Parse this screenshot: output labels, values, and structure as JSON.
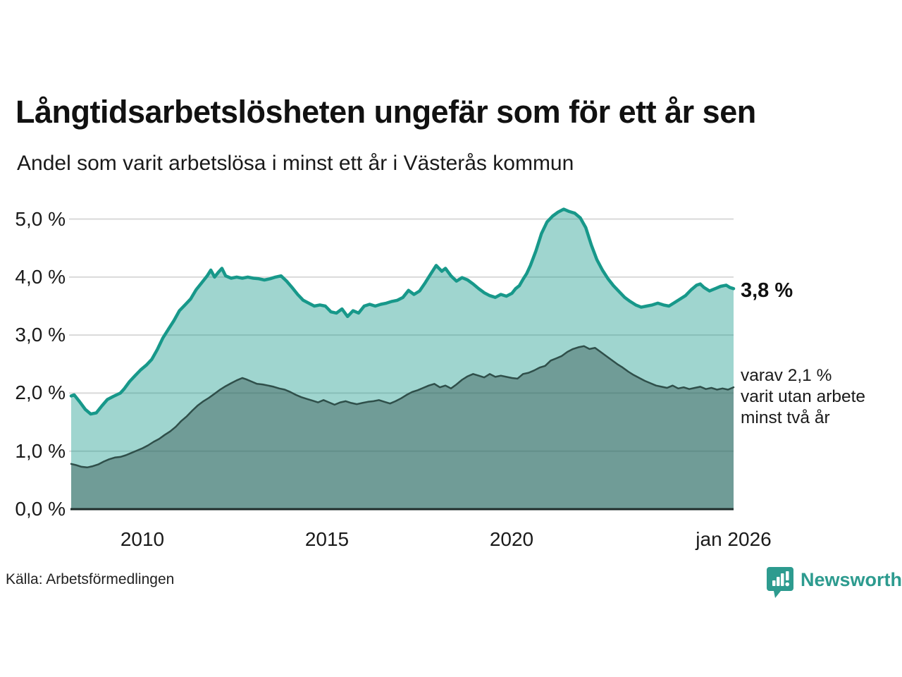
{
  "header": {
    "title": "Långtidsarbetslösheten ungefär som för ett år sen",
    "subtitle": "Andel som varit arbetslösa i minst ett år i Västerås kommun"
  },
  "annotations": {
    "latest_value": "3,8 %",
    "secondary_line1": "varav 2,1 %",
    "secondary_line2": "varit utan arbete",
    "secondary_line3": "minst två år"
  },
  "footer": {
    "source": "Källa: Arbetsförmedlingen",
    "brand": "Newsworthy"
  },
  "colors": {
    "accent_teal": "#17988a",
    "dark_line": "#2f4f4a",
    "light_fill": "rgba(23,152,138,0.41)",
    "dark_fill": "rgba(47,79,74,0.42)",
    "gridline": "#d9d9d9",
    "baseline": "#1f2d2b",
    "brand_teal": "#2d9b8f",
    "text": "#1a1a1a"
  },
  "chart_data": {
    "type": "area",
    "title": "Långtidsarbetslösheten ungefär som för ett år sen",
    "subtitle": "Andel som varit arbetslösa i minst ett år i Västerås kommun",
    "xlabel": "",
    "ylabel": "",
    "grid": true,
    "legend_position": "right-annotations",
    "x_axis": {
      "range": [
        2008.05,
        2026.0
      ],
      "ticks": [
        {
          "x": 2010,
          "label": "2010"
        },
        {
          "x": 2015,
          "label": "2015"
        },
        {
          "x": 2020,
          "label": "2020"
        },
        {
          "x": 2026,
          "label": "jan 2026"
        }
      ]
    },
    "y_axis": {
      "range": [
        0,
        5.25
      ],
      "unit": "%",
      "gridlines": [
        1,
        2,
        3,
        4,
        5
      ],
      "ticks": [
        {
          "v": 0,
          "label": "0,0 %"
        },
        {
          "v": 1,
          "label": "1,0 %"
        },
        {
          "v": 2,
          "label": "2,0 %"
        },
        {
          "v": 3,
          "label": "3,0 %"
        },
        {
          "v": 4,
          "label": "4,0 %"
        },
        {
          "v": 5,
          "label": "5,0 %"
        }
      ]
    },
    "series": [
      {
        "name": "Arbetslösa minst ett år",
        "end_label": "3,8 %",
        "end_value": 3.8,
        "color": "#17988a",
        "fill": "rgba(23,152,138,0.41)",
        "stroke_width": 4.5,
        "points": [
          [
            2008.07,
            1.95
          ],
          [
            2008.15,
            1.97
          ],
          [
            2008.3,
            1.85
          ],
          [
            2008.45,
            1.72
          ],
          [
            2008.6,
            1.64
          ],
          [
            2008.75,
            1.66
          ],
          [
            2008.9,
            1.78
          ],
          [
            2009.05,
            1.89
          ],
          [
            2009.2,
            1.94
          ],
          [
            2009.4,
            2.0
          ],
          [
            2009.5,
            2.07
          ],
          [
            2009.65,
            2.2
          ],
          [
            2009.8,
            2.3
          ],
          [
            2009.95,
            2.4
          ],
          [
            2010.1,
            2.48
          ],
          [
            2010.25,
            2.58
          ],
          [
            2010.4,
            2.75
          ],
          [
            2010.55,
            2.95
          ],
          [
            2010.7,
            3.1
          ],
          [
            2010.85,
            3.25
          ],
          [
            2011.0,
            3.42
          ],
          [
            2011.15,
            3.52
          ],
          [
            2011.3,
            3.62
          ],
          [
            2011.45,
            3.78
          ],
          [
            2011.6,
            3.9
          ],
          [
            2011.75,
            4.02
          ],
          [
            2011.85,
            4.12
          ],
          [
            2011.95,
            4.0
          ],
          [
            2012.05,
            4.08
          ],
          [
            2012.15,
            4.15
          ],
          [
            2012.25,
            4.02
          ],
          [
            2012.4,
            3.98
          ],
          [
            2012.55,
            4.0
          ],
          [
            2012.7,
            3.98
          ],
          [
            2012.85,
            4.0
          ],
          [
            2013.0,
            3.98
          ],
          [
            2013.15,
            3.97
          ],
          [
            2013.3,
            3.95
          ],
          [
            2013.45,
            3.97
          ],
          [
            2013.6,
            4.0
          ],
          [
            2013.75,
            4.02
          ],
          [
            2013.9,
            3.93
          ],
          [
            2014.05,
            3.82
          ],
          [
            2014.2,
            3.7
          ],
          [
            2014.35,
            3.6
          ],
          [
            2014.5,
            3.55
          ],
          [
            2014.65,
            3.5
          ],
          [
            2014.8,
            3.52
          ],
          [
            2014.95,
            3.5
          ],
          [
            2015.1,
            3.4
          ],
          [
            2015.25,
            3.38
          ],
          [
            2015.4,
            3.45
          ],
          [
            2015.55,
            3.32
          ],
          [
            2015.7,
            3.42
          ],
          [
            2015.85,
            3.38
          ],
          [
            2016.0,
            3.5
          ],
          [
            2016.15,
            3.53
          ],
          [
            2016.3,
            3.5
          ],
          [
            2016.45,
            3.53
          ],
          [
            2016.6,
            3.55
          ],
          [
            2016.75,
            3.58
          ],
          [
            2016.9,
            3.6
          ],
          [
            2017.05,
            3.65
          ],
          [
            2017.2,
            3.77
          ],
          [
            2017.35,
            3.7
          ],
          [
            2017.5,
            3.76
          ],
          [
            2017.65,
            3.9
          ],
          [
            2017.8,
            4.05
          ],
          [
            2017.95,
            4.2
          ],
          [
            2018.1,
            4.1
          ],
          [
            2018.2,
            4.15
          ],
          [
            2018.35,
            4.02
          ],
          [
            2018.5,
            3.93
          ],
          [
            2018.65,
            3.99
          ],
          [
            2018.8,
            3.95
          ],
          [
            2018.95,
            3.88
          ],
          [
            2019.1,
            3.8
          ],
          [
            2019.25,
            3.73
          ],
          [
            2019.4,
            3.68
          ],
          [
            2019.55,
            3.65
          ],
          [
            2019.7,
            3.7
          ],
          [
            2019.85,
            3.67
          ],
          [
            2020.0,
            3.72
          ],
          [
            2020.1,
            3.8
          ],
          [
            2020.2,
            3.85
          ],
          [
            2020.3,
            3.96
          ],
          [
            2020.4,
            4.06
          ],
          [
            2020.5,
            4.2
          ],
          [
            2020.65,
            4.45
          ],
          [
            2020.8,
            4.75
          ],
          [
            2020.95,
            4.95
          ],
          [
            2021.1,
            5.05
          ],
          [
            2021.25,
            5.12
          ],
          [
            2021.4,
            5.17
          ],
          [
            2021.55,
            5.13
          ],
          [
            2021.7,
            5.1
          ],
          [
            2021.85,
            5.02
          ],
          [
            2022.0,
            4.85
          ],
          [
            2022.15,
            4.55
          ],
          [
            2022.3,
            4.3
          ],
          [
            2022.45,
            4.12
          ],
          [
            2022.6,
            3.97
          ],
          [
            2022.75,
            3.85
          ],
          [
            2022.9,
            3.75
          ],
          [
            2023.05,
            3.65
          ],
          [
            2023.2,
            3.58
          ],
          [
            2023.35,
            3.52
          ],
          [
            2023.5,
            3.48
          ],
          [
            2023.65,
            3.5
          ],
          [
            2023.8,
            3.52
          ],
          [
            2023.95,
            3.55
          ],
          [
            2024.1,
            3.52
          ],
          [
            2024.25,
            3.5
          ],
          [
            2024.4,
            3.56
          ],
          [
            2024.55,
            3.62
          ],
          [
            2024.7,
            3.68
          ],
          [
            2024.85,
            3.78
          ],
          [
            2025.0,
            3.86
          ],
          [
            2025.1,
            3.88
          ],
          [
            2025.2,
            3.82
          ],
          [
            2025.35,
            3.76
          ],
          [
            2025.5,
            3.8
          ],
          [
            2025.65,
            3.84
          ],
          [
            2025.8,
            3.86
          ],
          [
            2025.9,
            3.82
          ],
          [
            2026.0,
            3.8
          ]
        ]
      },
      {
        "name": "Arbetslösa minst två år",
        "end_label": "varav 2,1 % varit utan arbete minst två år",
        "end_value": 2.1,
        "color": "#2f4f4a",
        "fill": "rgba(47,79,74,0.42)",
        "stroke_width": 2.5,
        "points": [
          [
            2008.07,
            0.78
          ],
          [
            2008.2,
            0.76
          ],
          [
            2008.35,
            0.73
          ],
          [
            2008.5,
            0.72
          ],
          [
            2008.65,
            0.74
          ],
          [
            2008.8,
            0.77
          ],
          [
            2008.95,
            0.82
          ],
          [
            2009.1,
            0.86
          ],
          [
            2009.25,
            0.89
          ],
          [
            2009.4,
            0.9
          ],
          [
            2009.55,
            0.93
          ],
          [
            2009.7,
            0.97
          ],
          [
            2009.85,
            1.01
          ],
          [
            2010.0,
            1.05
          ],
          [
            2010.15,
            1.1
          ],
          [
            2010.3,
            1.16
          ],
          [
            2010.45,
            1.21
          ],
          [
            2010.6,
            1.28
          ],
          [
            2010.75,
            1.34
          ],
          [
            2010.9,
            1.42
          ],
          [
            2011.05,
            1.52
          ],
          [
            2011.2,
            1.6
          ],
          [
            2011.35,
            1.7
          ],
          [
            2011.5,
            1.79
          ],
          [
            2011.65,
            1.86
          ],
          [
            2011.8,
            1.92
          ],
          [
            2011.95,
            1.99
          ],
          [
            2012.1,
            2.06
          ],
          [
            2012.25,
            2.12
          ],
          [
            2012.4,
            2.17
          ],
          [
            2012.55,
            2.22
          ],
          [
            2012.7,
            2.26
          ],
          [
            2012.8,
            2.24
          ],
          [
            2012.95,
            2.2
          ],
          [
            2013.1,
            2.16
          ],
          [
            2013.25,
            2.15
          ],
          [
            2013.4,
            2.13
          ],
          [
            2013.55,
            2.11
          ],
          [
            2013.7,
            2.08
          ],
          [
            2013.85,
            2.06
          ],
          [
            2014.0,
            2.02
          ],
          [
            2014.15,
            1.97
          ],
          [
            2014.3,
            1.93
          ],
          [
            2014.45,
            1.9
          ],
          [
            2014.6,
            1.87
          ],
          [
            2014.75,
            1.84
          ],
          [
            2014.9,
            1.88
          ],
          [
            2015.05,
            1.84
          ],
          [
            2015.2,
            1.8
          ],
          [
            2015.35,
            1.84
          ],
          [
            2015.5,
            1.86
          ],
          [
            2015.65,
            1.83
          ],
          [
            2015.8,
            1.81
          ],
          [
            2015.95,
            1.83
          ],
          [
            2016.1,
            1.85
          ],
          [
            2016.25,
            1.86
          ],
          [
            2016.4,
            1.88
          ],
          [
            2016.55,
            1.85
          ],
          [
            2016.7,
            1.82
          ],
          [
            2016.85,
            1.86
          ],
          [
            2017.0,
            1.91
          ],
          [
            2017.15,
            1.97
          ],
          [
            2017.3,
            2.02
          ],
          [
            2017.45,
            2.05
          ],
          [
            2017.6,
            2.09
          ],
          [
            2017.75,
            2.13
          ],
          [
            2017.9,
            2.16
          ],
          [
            2018.05,
            2.1
          ],
          [
            2018.2,
            2.13
          ],
          [
            2018.35,
            2.08
          ],
          [
            2018.5,
            2.15
          ],
          [
            2018.65,
            2.23
          ],
          [
            2018.8,
            2.29
          ],
          [
            2018.95,
            2.33
          ],
          [
            2019.1,
            2.3
          ],
          [
            2019.25,
            2.27
          ],
          [
            2019.4,
            2.33
          ],
          [
            2019.55,
            2.28
          ],
          [
            2019.7,
            2.3
          ],
          [
            2019.85,
            2.28
          ],
          [
            2020.0,
            2.26
          ],
          [
            2020.15,
            2.25
          ],
          [
            2020.3,
            2.33
          ],
          [
            2020.45,
            2.35
          ],
          [
            2020.6,
            2.39
          ],
          [
            2020.75,
            2.44
          ],
          [
            2020.9,
            2.47
          ],
          [
            2021.05,
            2.56
          ],
          [
            2021.2,
            2.6
          ],
          [
            2021.35,
            2.64
          ],
          [
            2021.5,
            2.71
          ],
          [
            2021.65,
            2.76
          ],
          [
            2021.8,
            2.79
          ],
          [
            2021.95,
            2.81
          ],
          [
            2022.1,
            2.76
          ],
          [
            2022.25,
            2.78
          ],
          [
            2022.4,
            2.71
          ],
          [
            2022.55,
            2.64
          ],
          [
            2022.7,
            2.57
          ],
          [
            2022.85,
            2.5
          ],
          [
            2023.0,
            2.44
          ],
          [
            2023.15,
            2.37
          ],
          [
            2023.3,
            2.31
          ],
          [
            2023.45,
            2.26
          ],
          [
            2023.6,
            2.21
          ],
          [
            2023.75,
            2.17
          ],
          [
            2023.9,
            2.13
          ],
          [
            2024.05,
            2.11
          ],
          [
            2024.2,
            2.09
          ],
          [
            2024.35,
            2.13
          ],
          [
            2024.5,
            2.08
          ],
          [
            2024.65,
            2.1
          ],
          [
            2024.8,
            2.07
          ],
          [
            2024.95,
            2.09
          ],
          [
            2025.1,
            2.11
          ],
          [
            2025.25,
            2.07
          ],
          [
            2025.4,
            2.09
          ],
          [
            2025.55,
            2.06
          ],
          [
            2025.7,
            2.08
          ],
          [
            2025.85,
            2.06
          ],
          [
            2026.0,
            2.1
          ]
        ]
      }
    ]
  }
}
